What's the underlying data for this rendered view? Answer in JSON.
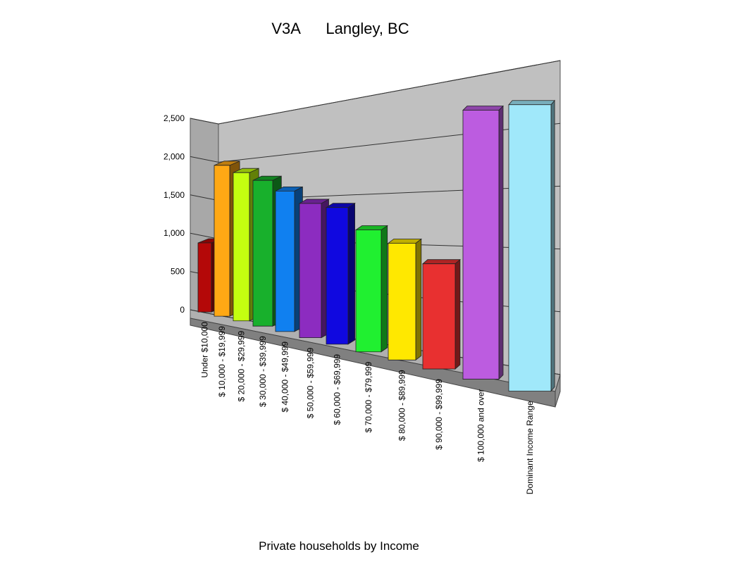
{
  "chart_data": {
    "type": "bar3d",
    "title": "V3A      Langley, BC",
    "xlabel": "Private households by Income",
    "categories": [
      "Under $10,000",
      "$ 10,000 - $19,999",
      "$ 20,000 - $29,999",
      "$ 30,000 - $39,999",
      "$ 40,000 - $49,999",
      "$ 50,000 - $59,999",
      "$ 60,000 - $69,999",
      "$ 70,000 - $79,999",
      "$ 80,000 - $89,999",
      "$ 90,000 - $99,999",
      "$ 100,000 and over",
      "Dominant Income Range"
    ],
    "values": [
      900,
      1920,
      1840,
      1760,
      1650,
      1530,
      1510,
      1300,
      1200,
      1040,
      2550,
      2590
    ],
    "colors": [
      "#b40808",
      "#ffa814",
      "#c4ff10",
      "#18b02c",
      "#1080f0",
      "#8c2cc0",
      "#1008e0",
      "#20f030",
      "#ffe800",
      "#e83030",
      "#bc5ce0",
      "#a0e8fa"
    ],
    "ylim": [
      0,
      2500
    ],
    "yticks": [
      0,
      500,
      {
        "value": 1000,
        "label": "1,000"
      },
      {
        "value": 1500,
        "label": "1,500"
      },
      {
        "value": 2000,
        "label": "2,000"
      },
      {
        "value": 2500,
        "label": "2,500"
      }
    ],
    "grid": true
  }
}
